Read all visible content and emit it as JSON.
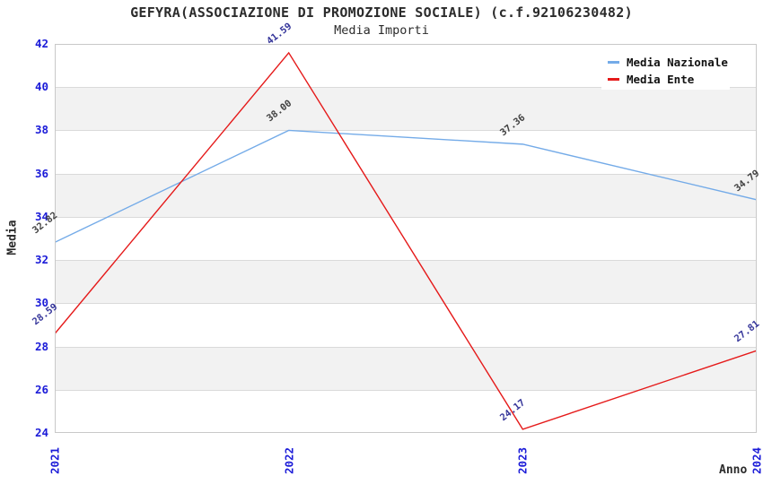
{
  "title": "GEFYRA(ASSOCIAZIONE DI PROMOZIONE SOCIALE) (c.f.92106230482)",
  "subtitle": "Media Importi",
  "chart_data": {
    "type": "line",
    "categories": [
      "2021",
      "2022",
      "2023",
      "2024"
    ],
    "xlabel": "Anno",
    "ylabel": "Media",
    "ylim": [
      24,
      42
    ],
    "y_ticks": [
      42,
      40,
      38,
      36,
      34,
      32,
      30,
      28,
      26,
      24
    ],
    "grid": "horizontal gridlines with alternating gray bands every 2 units",
    "legend_position": "top-right inside plot",
    "series": [
      {
        "name": "Media Nazionale",
        "color": "#74abe8",
        "label_color": "#404040",
        "values": [
          32.82,
          38.0,
          37.36,
          34.79
        ]
      },
      {
        "name": "Media Ente",
        "color": "#e51a1a",
        "label_color": "#333399",
        "values": [
          28.59,
          41.59,
          24.17,
          27.81
        ]
      }
    ]
  },
  "colors": {
    "tick_label": "#1b1bd8",
    "band": "#f2f2f2",
    "gridline": "#dadada",
    "frame": "#c9c9c9",
    "title_text": "#2b2b2b"
  }
}
